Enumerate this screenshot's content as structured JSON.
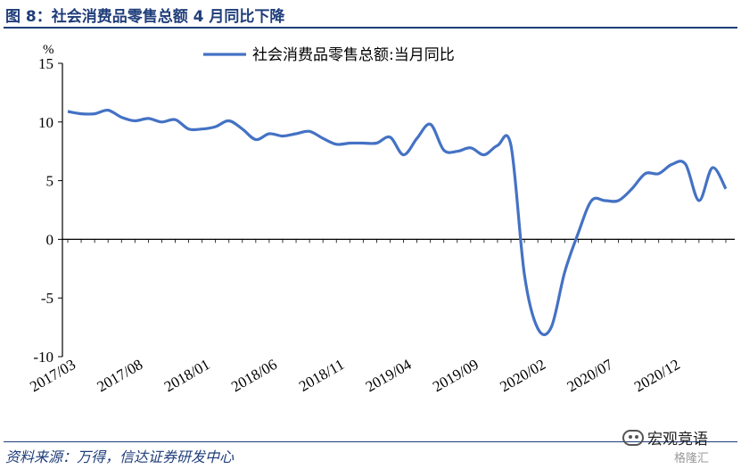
{
  "header": {
    "title": "图 8：社会消费品零售总额 4 月同比下降"
  },
  "footer": {
    "source": "资料来源：万得，信达证券研发中心"
  },
  "watermark": {
    "text": "宏观竞语",
    "sub": "格隆汇"
  },
  "colors": {
    "line": "#4472c4",
    "title": "#1f3d7a",
    "axis": "#000000"
  },
  "chart_data": {
    "type": "line",
    "yunit": "%",
    "ylim": [
      -10,
      15
    ],
    "yticks": [
      -10,
      -5,
      0,
      5,
      10,
      15
    ],
    "grid": false,
    "legend_position": "top",
    "x_tick_labels": [
      "2017/03",
      "2017/08",
      "2018/01",
      "2018/06",
      "2018/11",
      "2019/04",
      "2019/09",
      "2020/02",
      "2020/07",
      "2020/12"
    ],
    "x_tick_index": [
      0,
      5,
      10,
      15,
      20,
      25,
      30,
      35,
      40,
      45
    ],
    "x": [
      "2017/03",
      "2017/04",
      "2017/05",
      "2017/06",
      "2017/07",
      "2017/08",
      "2017/09",
      "2017/10",
      "2017/11",
      "2017/12",
      "2018/01",
      "2018/02",
      "2018/03",
      "2018/04",
      "2018/05",
      "2018/06",
      "2018/07",
      "2018/08",
      "2018/09",
      "2018/10",
      "2018/11",
      "2018/12",
      "2019/01",
      "2019/02",
      "2019/03",
      "2019/04",
      "2019/05",
      "2019/06",
      "2019/07",
      "2019/08",
      "2019/09",
      "2019/10",
      "2019/11",
      "2019/12",
      "2020/01",
      "2020/02",
      "2020/03",
      "2020/04",
      "2020/05",
      "2020/06",
      "2020/07",
      "2020/08",
      "2020/09",
      "2020/10",
      "2020/11",
      "2020/12",
      "2021/01",
      "2021/02",
      "2021/03",
      "2021/04"
    ],
    "series": [
      {
        "name": "社会消费品零售总额:当月同比",
        "values": [
          10.9,
          10.7,
          10.7,
          11.0,
          10.4,
          10.1,
          10.3,
          10.0,
          10.2,
          9.4,
          9.4,
          9.6,
          10.1,
          9.4,
          8.5,
          9.0,
          8.8,
          9.0,
          9.2,
          8.6,
          8.1,
          8.2,
          8.2,
          8.2,
          8.7,
          7.2,
          8.6,
          9.8,
          7.6,
          7.5,
          7.8,
          7.2,
          8.0,
          8.0,
          -3.0,
          -7.6,
          -7.5,
          -2.8,
          0.5,
          3.3,
          3.3,
          3.3,
          4.3,
          5.6,
          5.6,
          6.4,
          6.4,
          3.3,
          6.1,
          4.3
        ]
      }
    ]
  }
}
